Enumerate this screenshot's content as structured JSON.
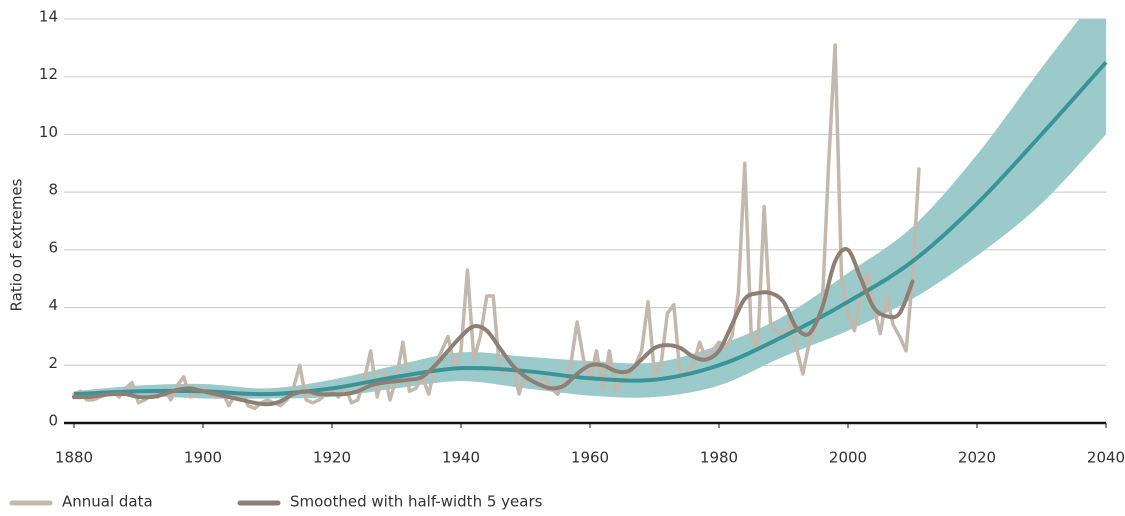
{
  "chart_data": {
    "type": "line",
    "ylabel": "Ratio of extremes",
    "xlim": [
      1880,
      2040
    ],
    "xticks": [
      1880,
      1900,
      1920,
      1940,
      1960,
      1980,
      2000,
      2020,
      2040
    ],
    "ylim": [
      0,
      14
    ],
    "yticks": [
      0,
      2,
      4,
      6,
      8,
      10,
      12,
      14
    ],
    "grid": true,
    "series": [
      {
        "name": "Annual data",
        "color": "#c2b8ad",
        "x": [
          1880,
          1881,
          1882,
          1883,
          1884,
          1885,
          1886,
          1887,
          1888,
          1889,
          1890,
          1891,
          1892,
          1893,
          1894,
          1895,
          1896,
          1897,
          1898,
          1899,
          1900,
          1901,
          1902,
          1903,
          1904,
          1905,
          1906,
          1907,
          1908,
          1909,
          1910,
          1911,
          1912,
          1913,
          1914,
          1915,
          1916,
          1917,
          1918,
          1919,
          1920,
          1921,
          1922,
          1923,
          1924,
          1925,
          1926,
          1927,
          1928,
          1929,
          1930,
          1931,
          1932,
          1933,
          1934,
          1935,
          1936,
          1937,
          1938,
          1939,
          1940,
          1941,
          1942,
          1943,
          1944,
          1945,
          1946,
          1947,
          1948,
          1949,
          1950,
          1951,
          1952,
          1953,
          1954,
          1955,
          1956,
          1957,
          1958,
          1959,
          1960,
          1961,
          1962,
          1963,
          1964,
          1965,
          1966,
          1967,
          1968,
          1969,
          1970,
          1971,
          1972,
          1973,
          1974,
          1975,
          1976,
          1977,
          1978,
          1979,
          1980,
          1981,
          1982,
          1983,
          1984,
          1985,
          1986,
          1987,
          1988,
          1989,
          1990,
          1991,
          1992,
          1993,
          1994,
          1995,
          1996,
          1997,
          1998,
          1999,
          2000,
          2001,
          2002,
          2003,
          2004,
          2005,
          2006,
          2007,
          2008,
          2009,
          2010,
          2011
        ],
        "values": [
          1.0,
          1.1,
          0.8,
          0.8,
          0.9,
          1.0,
          1.1,
          0.9,
          1.2,
          1.4,
          0.7,
          0.8,
          1.0,
          0.9,
          1.2,
          0.8,
          1.3,
          1.6,
          0.9,
          1.0,
          1.2,
          1.0,
          0.9,
          1.1,
          0.6,
          1.0,
          1.1,
          0.6,
          0.5,
          0.7,
          0.8,
          0.7,
          0.6,
          0.8,
          1.2,
          2.0,
          0.8,
          0.7,
          0.8,
          1.0,
          1.1,
          0.9,
          1.3,
          0.7,
          0.8,
          1.5,
          2.5,
          0.9,
          1.8,
          0.8,
          1.6,
          2.8,
          1.1,
          1.2,
          1.6,
          1.0,
          2.0,
          2.5,
          3.0,
          1.9,
          2.5,
          5.3,
          2.2,
          3.0,
          4.4,
          4.4,
          1.8,
          1.7,
          2.0,
          1.0,
          1.8,
          1.5,
          1.3,
          1.6,
          1.2,
          1.0,
          1.4,
          2.0,
          3.5,
          2.2,
          1.5,
          2.5,
          1.2,
          2.5,
          1.1,
          1.5,
          1.7,
          2.0,
          2.5,
          4.2,
          1.7,
          2.0,
          3.8,
          4.1,
          1.6,
          1.8,
          2.0,
          2.8,
          2.2,
          2.5,
          2.8,
          2.6,
          3.0,
          4.5,
          9.0,
          3.0,
          2.6,
          7.5,
          3.4,
          3.2,
          3.0,
          3.5,
          2.6,
          1.7,
          2.8,
          3.3,
          4.0,
          9.0,
          13.1,
          5.0,
          3.8,
          3.2,
          4.5,
          5.2,
          4.0,
          3.1,
          4.4,
          3.4,
          3.0,
          2.5,
          5.0,
          8.8
        ]
      },
      {
        "name": "Smoothed with half-width 5 years",
        "color": "#8c7f74",
        "x": [
          1880,
          1882,
          1884,
          1886,
          1888,
          1890,
          1892,
          1894,
          1896,
          1898,
          1900,
          1902,
          1904,
          1906,
          1908,
          1910,
          1912,
          1914,
          1916,
          1918,
          1920,
          1922,
          1924,
          1926,
          1928,
          1930,
          1932,
          1934,
          1936,
          1938,
          1940,
          1942,
          1944,
          1946,
          1948,
          1950,
          1952,
          1954,
          1956,
          1958,
          1960,
          1962,
          1964,
          1966,
          1968,
          1970,
          1972,
          1974,
          1976,
          1978,
          1980,
          1982,
          1984,
          1986,
          1988,
          1990,
          1992,
          1994,
          1996,
          1998,
          2000,
          2002,
          2004,
          2006,
          2008,
          2010
        ],
        "values": [
          0.9,
          0.9,
          0.95,
          1.0,
          1.0,
          0.9,
          0.9,
          1.0,
          1.15,
          1.2,
          1.1,
          1.0,
          0.9,
          0.8,
          0.7,
          0.65,
          0.75,
          1.0,
          1.1,
          1.0,
          1.0,
          1.0,
          1.1,
          1.3,
          1.4,
          1.45,
          1.5,
          1.6,
          2.0,
          2.5,
          3.0,
          3.35,
          3.2,
          2.6,
          2.0,
          1.6,
          1.35,
          1.2,
          1.3,
          1.7,
          2.0,
          2.0,
          1.8,
          1.8,
          2.2,
          2.6,
          2.7,
          2.6,
          2.3,
          2.2,
          2.5,
          3.4,
          4.3,
          4.5,
          4.5,
          4.2,
          3.3,
          3.1,
          4.0,
          5.6,
          6.0,
          5.0,
          4.0,
          3.7,
          3.8,
          4.9
        ]
      }
    ],
    "trend": {
      "color": "#3a9497",
      "band_color": "#9ccaca",
      "x": [
        1880,
        1890,
        1900,
        1910,
        1920,
        1930,
        1940,
        1950,
        1960,
        1970,
        1980,
        1990,
        2000,
        2010,
        2020,
        2030,
        2040
      ],
      "values": [
        1.0,
        1.1,
        1.1,
        1.0,
        1.2,
        1.6,
        1.9,
        1.8,
        1.55,
        1.5,
        2.0,
        3.0,
        4.2,
        5.6,
        7.6,
        10.0,
        12.5
      ],
      "lower": [
        0.95,
        0.95,
        0.85,
        0.85,
        0.9,
        1.2,
        1.45,
        1.2,
        0.95,
        0.9,
        1.3,
        2.3,
        3.2,
        4.3,
        5.8,
        7.6,
        10.0
      ],
      "upper": [
        1.1,
        1.3,
        1.35,
        1.2,
        1.5,
        2.0,
        2.45,
        2.3,
        2.15,
        2.1,
        2.7,
        3.7,
        5.2,
        6.8,
        9.3,
        12.3,
        15.2
      ]
    }
  }
}
